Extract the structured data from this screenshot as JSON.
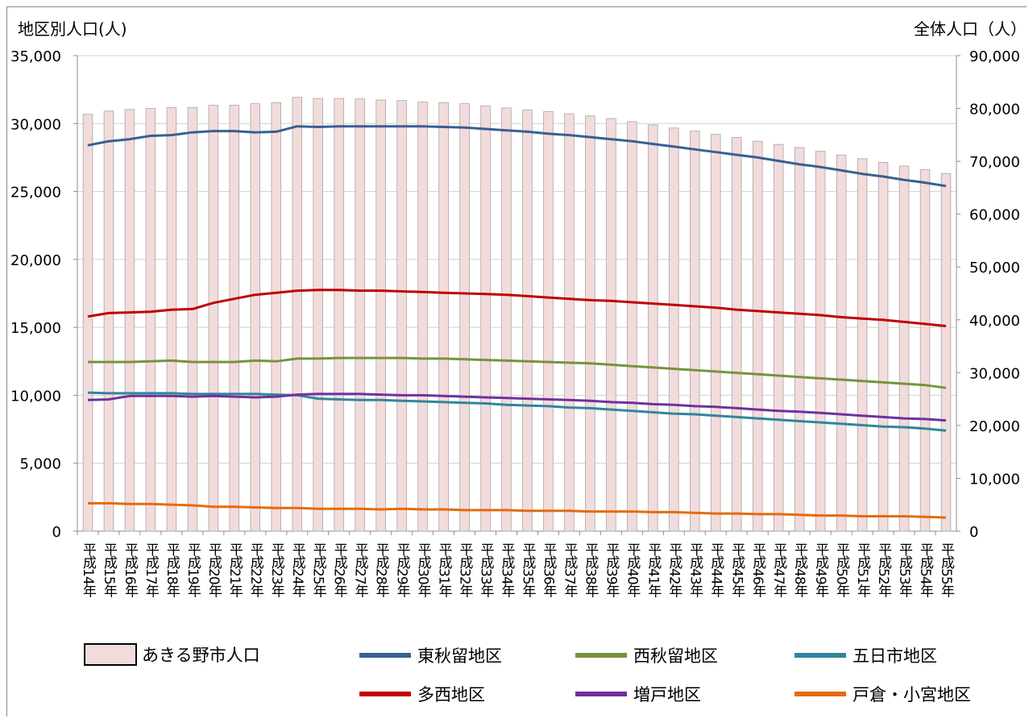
{
  "chart_data": {
    "type": "bar+line",
    "left_axis_title": "地区別人口(人)",
    "right_axis_title": "全体人口（人）",
    "left_ylim": [
      0,
      35000
    ],
    "left_yticks": [
      "0",
      "5,000",
      "10,000",
      "15,000",
      "20,000",
      "25,000",
      "30,000",
      "35,000"
    ],
    "right_ylim": [
      0,
      90000
    ],
    "right_yticks": [
      "0",
      "10,000",
      "20,000",
      "30,000",
      "40,000",
      "50,000",
      "60,000",
      "70,000",
      "80,000",
      "90,000"
    ],
    "grid": true,
    "legend_placement": "bottom",
    "categories": [
      "平成14年",
      "平成15年",
      "平成16年",
      "平成17年",
      "平成18年",
      "平成19年",
      "平成20年",
      "平成21年",
      "平成22年",
      "平成23年",
      "平成24年",
      "平成25年",
      "平成26年",
      "平成27年",
      "平成28年",
      "平成29年",
      "平成30年",
      "平成31年",
      "平成32年",
      "平成33年",
      "平成34年",
      "平成35年",
      "平成36年",
      "平成37年",
      "平成38年",
      "平成39年",
      "平成40年",
      "平成41年",
      "平成42年",
      "平成43年",
      "平成44年",
      "平成45年",
      "平成46年",
      "平成47年",
      "平成48年",
      "平成49年",
      "平成50年",
      "平成51年",
      "平成52年",
      "平成53年",
      "平成54年",
      "平成55年"
    ],
    "bar_series": {
      "name": "あきる野市人口",
      "axis": "right",
      "color": "#f2dcdb",
      "values": [
        78900,
        79500,
        79800,
        80000,
        80150,
        80200,
        80600,
        80600,
        80900,
        81100,
        82100,
        81900,
        81900,
        81800,
        81600,
        81500,
        81200,
        81100,
        80900,
        80500,
        80100,
        79700,
        79400,
        79000,
        78600,
        78100,
        77500,
        76900,
        76300,
        75700,
        75100,
        74500,
        73800,
        73200,
        72600,
        71900,
        71200,
        70500,
        69800,
        69100,
        68400,
        67700
      ]
    },
    "series": [
      {
        "name": "東秋留地区",
        "color": "#376092",
        "values": [
          28400,
          28700,
          28850,
          29100,
          29150,
          29350,
          29450,
          29450,
          29350,
          29400,
          29800,
          29750,
          29800,
          29800,
          29800,
          29800,
          29800,
          29750,
          29700,
          29600,
          29500,
          29400,
          29250,
          29150,
          29000,
          28850,
          28700,
          28500,
          28300,
          28100,
          27900,
          27700,
          27500,
          27250,
          27000,
          26800,
          26550,
          26300,
          26100,
          25850,
          25650,
          25400
        ]
      },
      {
        "name": "西秋留地区",
        "color": "#77933c",
        "values": [
          12450,
          12450,
          12450,
          12500,
          12550,
          12450,
          12450,
          12450,
          12550,
          12500,
          12700,
          12700,
          12750,
          12750,
          12750,
          12750,
          12700,
          12700,
          12650,
          12600,
          12550,
          12500,
          12450,
          12400,
          12350,
          12250,
          12150,
          12050,
          11950,
          11850,
          11750,
          11650,
          11550,
          11450,
          11350,
          11250,
          11150,
          11050,
          10950,
          10850,
          10750,
          10550
        ]
      },
      {
        "name": "五日市地区",
        "color": "#31859c",
        "values": [
          10200,
          10150,
          10150,
          10150,
          10150,
          10100,
          10100,
          10100,
          10100,
          10050,
          10000,
          9750,
          9700,
          9650,
          9650,
          9600,
          9550,
          9500,
          9450,
          9400,
          9300,
          9250,
          9200,
          9100,
          9050,
          8950,
          8850,
          8750,
          8650,
          8600,
          8500,
          8400,
          8300,
          8200,
          8100,
          8000,
          7900,
          7800,
          7700,
          7650,
          7550,
          7400
        ]
      },
      {
        "name": "多西地区",
        "color": "#c00000",
        "values": [
          15800,
          16050,
          16100,
          16150,
          16300,
          16350,
          16800,
          17100,
          17400,
          17550,
          17700,
          17750,
          17750,
          17700,
          17700,
          17650,
          17600,
          17550,
          17500,
          17450,
          17400,
          17300,
          17200,
          17100,
          17000,
          16950,
          16850,
          16750,
          16650,
          16550,
          16450,
          16300,
          16200,
          16100,
          16000,
          15900,
          15750,
          15650,
          15550,
          15400,
          15250,
          15100
        ]
      },
      {
        "name": "増戸地区",
        "color": "#7030a0",
        "values": [
          9650,
          9700,
          9950,
          9950,
          9950,
          9900,
          9950,
          9900,
          9850,
          9900,
          10050,
          10100,
          10100,
          10100,
          10050,
          10000,
          10000,
          9950,
          9900,
          9850,
          9800,
          9750,
          9700,
          9650,
          9600,
          9500,
          9450,
          9350,
          9300,
          9200,
          9150,
          9050,
          8950,
          8850,
          8800,
          8700,
          8600,
          8500,
          8400,
          8300,
          8250,
          8150
        ]
      },
      {
        "name": "戸倉・小宮地区",
        "color": "#e46c0a",
        "values": [
          2050,
          2050,
          2000,
          2000,
          1950,
          1900,
          1800,
          1800,
          1750,
          1700,
          1700,
          1650,
          1650,
          1650,
          1600,
          1650,
          1600,
          1600,
          1550,
          1550,
          1550,
          1500,
          1500,
          1500,
          1450,
          1450,
          1450,
          1400,
          1400,
          1350,
          1300,
          1300,
          1250,
          1250,
          1200,
          1150,
          1150,
          1100,
          1100,
          1100,
          1050,
          1000
        ]
      }
    ]
  }
}
